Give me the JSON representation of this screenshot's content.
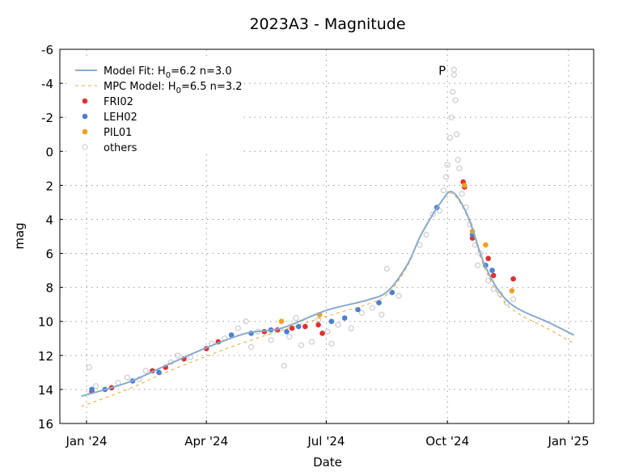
{
  "chart_data": {
    "type": "scatter",
    "title": "2023A3 - Magnitude",
    "xlabel": "Date",
    "ylabel": "mag",
    "xlim": [
      "2023-12-12",
      "2025-01-20"
    ],
    "ylim": [
      16,
      -6
    ],
    "y_inverted": true,
    "grid": true,
    "legend_placement": "top-left",
    "x_ticks": [
      {
        "date": "2024-01-01",
        "label": "Jan '24"
      },
      {
        "date": "2024-04-01",
        "label": "Apr '24"
      },
      {
        "date": "2024-07-01",
        "label": "Jul '24"
      },
      {
        "date": "2024-10-01",
        "label": "Oct '24"
      },
      {
        "date": "2025-01-01",
        "label": "Jan '25"
      }
    ],
    "y_ticks": [
      -6,
      -4,
      -2,
      0,
      2,
      4,
      6,
      8,
      10,
      12,
      14,
      16
    ],
    "annotations": [
      {
        "text": "P",
        "date": "2024-09-27",
        "mag": -4.8
      }
    ],
    "models": [
      {
        "name": "Model Fit: H0=6.2 n=3.0",
        "label_main": "Model Fit: H",
        "sub": "0",
        "label_rest": "=6.2 n=3.0",
        "color": "#88aacc",
        "style": "solid",
        "points": [
          [
            "2023-12-28",
            14.4
          ],
          [
            "2024-02-01",
            13.6
          ],
          [
            "2024-03-01",
            12.6
          ],
          [
            "2024-04-01",
            11.55
          ],
          [
            "2024-05-01",
            10.7
          ],
          [
            "2024-05-28",
            10.4
          ],
          [
            "2024-07-01",
            9.35
          ],
          [
            "2024-08-01",
            8.75
          ],
          [
            "2024-08-17",
            8.2
          ],
          [
            "2024-09-01",
            6.6
          ],
          [
            "2024-09-11",
            4.9
          ],
          [
            "2024-09-26",
            3.0
          ],
          [
            "2024-10-05",
            2.4
          ],
          [
            "2024-10-17",
            3.9
          ],
          [
            "2024-10-30",
            6.8
          ],
          [
            "2024-11-17",
            8.9
          ],
          [
            "2024-12-18",
            10.1
          ],
          [
            "2025-01-05",
            10.8
          ]
        ]
      },
      {
        "name": "MPC Model: H0=6.5 n=3.2",
        "label_main": "MPC Model: H",
        "sub": "0",
        "label_rest": "=6.5 n=3.2",
        "color": "#e8a838",
        "style": "dashed",
        "points": [
          [
            "2023-12-28",
            15.0
          ],
          [
            "2024-02-01",
            14.0
          ],
          [
            "2024-03-01",
            13.0
          ],
          [
            "2024-04-01",
            12.05
          ],
          [
            "2024-05-01",
            11.2
          ],
          [
            "2024-07-01",
            9.7
          ],
          [
            "2024-08-01",
            9.0
          ],
          [
            "2024-08-17",
            8.35
          ],
          [
            "2024-09-01",
            6.7
          ],
          [
            "2024-09-11",
            4.9
          ],
          [
            "2024-09-26",
            3.0
          ],
          [
            "2024-10-05",
            2.5
          ],
          [
            "2024-10-17",
            4.0
          ],
          [
            "2024-10-30",
            7.0
          ],
          [
            "2024-11-17",
            9.15
          ],
          [
            "2024-12-18",
            10.5
          ],
          [
            "2025-01-05",
            11.3
          ]
        ]
      }
    ],
    "series": [
      {
        "name": "FRI02",
        "color": "#e03030",
        "filled": true,
        "points": [
          [
            "2024-01-05",
            14.1
          ],
          [
            "2024-01-20",
            13.9
          ],
          [
            "2024-02-20",
            12.9
          ],
          [
            "2024-03-01",
            12.7
          ],
          [
            "2024-03-15",
            12.2
          ],
          [
            "2024-04-01",
            11.6
          ],
          [
            "2024-04-10",
            11.2
          ],
          [
            "2024-05-15",
            10.6
          ],
          [
            "2024-05-25",
            10.5
          ],
          [
            "2024-06-05",
            10.4
          ],
          [
            "2024-06-15",
            10.3
          ],
          [
            "2024-06-25",
            10.2
          ],
          [
            "2024-06-28",
            10.7
          ],
          [
            "2024-10-13",
            1.8
          ],
          [
            "2024-10-14",
            2.1
          ],
          [
            "2024-10-20",
            5.1
          ],
          [
            "2024-11-01",
            6.3
          ],
          [
            "2024-11-05",
            7.3
          ],
          [
            "2024-11-20",
            7.5
          ]
        ]
      },
      {
        "name": "LEH02",
        "color": "#4a7fd4",
        "filled": true,
        "points": [
          [
            "2024-01-05",
            14.0
          ],
          [
            "2024-01-15",
            14.0
          ],
          [
            "2024-02-05",
            13.5
          ],
          [
            "2024-02-25",
            13.0
          ],
          [
            "2024-04-20",
            10.8
          ],
          [
            "2024-05-05",
            10.7
          ],
          [
            "2024-05-20",
            10.5
          ],
          [
            "2024-06-01",
            10.6
          ],
          [
            "2024-06-10",
            10.3
          ],
          [
            "2024-07-05",
            10.0
          ],
          [
            "2024-07-15",
            9.8
          ],
          [
            "2024-07-25",
            9.3
          ],
          [
            "2024-08-10",
            8.9
          ],
          [
            "2024-08-20",
            8.3
          ],
          [
            "2024-09-23",
            3.3
          ],
          [
            "2024-10-20",
            4.9
          ],
          [
            "2024-10-30",
            6.7
          ],
          [
            "2024-11-04",
            7.0
          ]
        ]
      },
      {
        "name": "PIL01",
        "color": "#f0a020",
        "filled": true,
        "points": [
          [
            "2024-05-28",
            10.0
          ],
          [
            "2024-06-26",
            9.6
          ],
          [
            "2024-10-14",
            2.0
          ],
          [
            "2024-10-20",
            4.7
          ],
          [
            "2024-10-30",
            5.5
          ],
          [
            "2024-11-19",
            8.2
          ]
        ]
      },
      {
        "name": "others",
        "color": "#cccccc",
        "filled": false,
        "points": [
          [
            "2024-01-03",
            12.7
          ],
          [
            "2024-01-08",
            13.8
          ],
          [
            "2024-01-25",
            13.6
          ],
          [
            "2024-02-01",
            13.3
          ],
          [
            "2024-02-10",
            13.4
          ],
          [
            "2024-02-15",
            12.9
          ],
          [
            "2024-03-05",
            12.4
          ],
          [
            "2024-03-10",
            12.0
          ],
          [
            "2024-03-20",
            12.1
          ],
          [
            "2024-04-05",
            11.3
          ],
          [
            "2024-04-15",
            11.0
          ],
          [
            "2024-04-25",
            10.4
          ],
          [
            "2024-05-01",
            10.0
          ],
          [
            "2024-05-05",
            11.5
          ],
          [
            "2024-05-10",
            10.6
          ],
          [
            "2024-05-20",
            11.1
          ],
          [
            "2024-05-30",
            12.6
          ],
          [
            "2024-06-03",
            10.9
          ],
          [
            "2024-06-08",
            9.8
          ],
          [
            "2024-06-12",
            11.4
          ],
          [
            "2024-06-20",
            11.2
          ],
          [
            "2024-06-25",
            9.9
          ],
          [
            "2024-07-02",
            10.6
          ],
          [
            "2024-07-05",
            11.3
          ],
          [
            "2024-07-10",
            10.2
          ],
          [
            "2024-07-20",
            10.4
          ],
          [
            "2024-07-28",
            9.5
          ],
          [
            "2024-08-05",
            9.2
          ],
          [
            "2024-08-12",
            9.6
          ],
          [
            "2024-08-16",
            6.9
          ],
          [
            "2024-08-25",
            8.5
          ],
          [
            "2024-09-10",
            5.5
          ],
          [
            "2024-09-15",
            4.9
          ],
          [
            "2024-09-20",
            3.7
          ],
          [
            "2024-09-25",
            3.5
          ],
          [
            "2024-09-28",
            2.3
          ],
          [
            "2024-09-30",
            1.5
          ],
          [
            "2024-10-01",
            0.8
          ],
          [
            "2024-10-03",
            -0.8
          ],
          [
            "2024-10-04",
            -2.0
          ],
          [
            "2024-10-05",
            -3.5
          ],
          [
            "2024-10-06",
            -4.5
          ],
          [
            "2024-10-06",
            -4.8
          ],
          [
            "2024-10-07",
            -3.0
          ],
          [
            "2024-10-08",
            -1.0
          ],
          [
            "2024-10-09",
            0.5
          ],
          [
            "2024-10-10",
            1.0
          ],
          [
            "2024-10-12",
            2.5
          ],
          [
            "2024-10-15",
            3.3
          ],
          [
            "2024-10-18",
            4.3
          ],
          [
            "2024-10-22",
            5.5
          ],
          [
            "2024-10-24",
            6.7
          ],
          [
            "2024-10-26",
            6.0
          ],
          [
            "2024-11-01",
            7.6
          ],
          [
            "2024-11-05",
            8.1
          ],
          [
            "2024-11-10",
            8.4
          ],
          [
            "2024-11-15",
            8.9
          ],
          [
            "2024-11-20",
            8.7
          ]
        ]
      }
    ]
  }
}
